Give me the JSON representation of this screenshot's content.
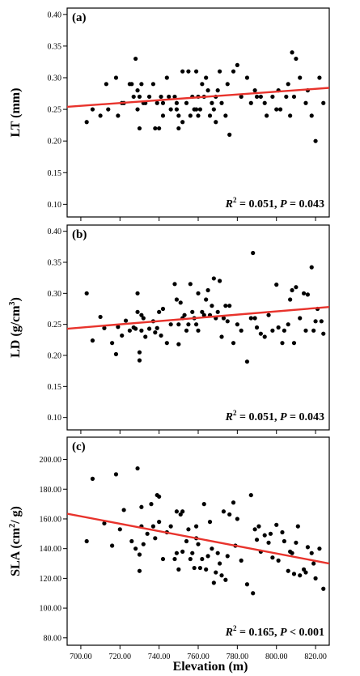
{
  "chart_data": [
    {
      "type": "scatter",
      "panel_label": "(a)",
      "ylabel": "LT (mm)",
      "ylabel_main": "LT (mm)",
      "ylabel_sup": "",
      "ylabel_tail": "",
      "ylim": [
        0.08,
        0.41
      ],
      "yticks": [
        0.1,
        0.15,
        0.2,
        0.25,
        0.3,
        0.35,
        0.4
      ],
      "ytick_labels": [
        "0.10",
        "0.15",
        "0.20",
        "0.25",
        "0.30",
        "0.35",
        "0.40"
      ],
      "stats": {
        "r2": "0.051",
        "p_rel": "=",
        "p": "0.043"
      },
      "trend": {
        "x": [
          693,
          827
        ],
        "y": [
          0.254,
          0.284
        ],
        "color": "#e8332c"
      },
      "x": [
        703,
        706,
        710,
        713,
        714,
        718,
        719,
        721,
        722,
        725,
        726,
        727,
        728,
        729,
        729,
        730,
        730,
        731,
        732,
        733,
        735,
        737,
        738,
        739,
        740,
        741,
        742,
        742,
        744,
        745,
        746,
        748,
        749,
        749,
        750,
        750,
        752,
        752,
        754,
        755,
        756,
        757,
        758,
        759,
        759,
        760,
        760,
        761,
        762,
        763,
        764,
        765,
        766,
        767,
        768,
        769,
        769,
        770,
        771,
        772,
        774,
        775,
        776,
        778,
        780,
        782,
        785,
        787,
        789,
        790,
        792,
        794,
        795,
        798,
        800,
        801,
        802,
        805,
        806,
        807,
        808,
        809,
        810,
        812,
        815,
        816,
        818,
        820,
        822,
        824
      ],
      "y": [
        0.23,
        0.25,
        0.24,
        0.29,
        0.25,
        0.3,
        0.24,
        0.26,
        0.26,
        0.29,
        0.29,
        0.27,
        0.33,
        0.25,
        0.28,
        0.22,
        0.27,
        0.29,
        0.26,
        0.26,
        0.27,
        0.29,
        0.22,
        0.26,
        0.22,
        0.27,
        0.26,
        0.24,
        0.3,
        0.27,
        0.25,
        0.27,
        0.25,
        0.26,
        0.24,
        0.22,
        0.31,
        0.23,
        0.26,
        0.31,
        0.24,
        0.27,
        0.25,
        0.31,
        0.25,
        0.27,
        0.24,
        0.25,
        0.29,
        0.27,
        0.3,
        0.28,
        0.24,
        0.26,
        0.25,
        0.23,
        0.27,
        0.28,
        0.31,
        0.26,
        0.24,
        0.29,
        0.21,
        0.31,
        0.32,
        0.27,
        0.3,
        0.26,
        0.28,
        0.27,
        0.27,
        0.26,
        0.24,
        0.27,
        0.25,
        0.28,
        0.25,
        0.27,
        0.29,
        0.24,
        0.34,
        0.27,
        0.33,
        0.3,
        0.26,
        0.28,
        0.24,
        0.2,
        0.3,
        0.26
      ]
    },
    {
      "type": "scatter",
      "panel_label": "(b)",
      "ylabel": "LD (g/cm3)",
      "ylabel_main": "LD (g/cm",
      "ylabel_sup": "3",
      "ylabel_tail": ")",
      "ylim": [
        0.08,
        0.41
      ],
      "yticks": [
        0.1,
        0.15,
        0.2,
        0.25,
        0.3,
        0.35,
        0.4
      ],
      "ytick_labels": [
        "0.10",
        "0.15",
        "0.20",
        "0.25",
        "0.30",
        "0.35",
        "0.40"
      ],
      "stats": {
        "r2": "0.051",
        "p_rel": "=",
        "p": "0.043"
      },
      "trend": {
        "x": [
          693,
          827
        ],
        "y": [
          0.243,
          0.278
        ],
        "color": "#e8332c"
      },
      "x": [
        703,
        706,
        710,
        712,
        716,
        718,
        719,
        721,
        723,
        725,
        727,
        728,
        729,
        729,
        730,
        730,
        731,
        731,
        732,
        733,
        735,
        737,
        738,
        739,
        740,
        741,
        742,
        744,
        746,
        748,
        749,
        750,
        750,
        751,
        752,
        753,
        754,
        755,
        756,
        757,
        758,
        759,
        760,
        760,
        762,
        763,
        764,
        765,
        766,
        767,
        768,
        769,
        770,
        771,
        772,
        773,
        774,
        775,
        776,
        778,
        780,
        782,
        785,
        787,
        788,
        789,
        790,
        792,
        794,
        796,
        798,
        800,
        801,
        803,
        804,
        806,
        807,
        808,
        809,
        810,
        812,
        814,
        815,
        816,
        818,
        819,
        820,
        821,
        823,
        824
      ],
      "y": [
        0.3,
        0.224,
        0.262,
        0.244,
        0.22,
        0.202,
        0.246,
        0.232,
        0.256,
        0.24,
        0.245,
        0.243,
        0.3,
        0.27,
        0.192,
        0.205,
        0.265,
        0.24,
        0.26,
        0.23,
        0.243,
        0.255,
        0.237,
        0.244,
        0.27,
        0.232,
        0.275,
        0.22,
        0.25,
        0.315,
        0.29,
        0.25,
        0.218,
        0.285,
        0.26,
        0.265,
        0.24,
        0.25,
        0.315,
        0.27,
        0.26,
        0.25,
        0.24,
        0.3,
        0.27,
        0.265,
        0.29,
        0.305,
        0.265,
        0.28,
        0.324,
        0.26,
        0.27,
        0.32,
        0.23,
        0.26,
        0.28,
        0.255,
        0.28,
        0.22,
        0.25,
        0.24,
        0.19,
        0.26,
        0.365,
        0.26,
        0.245,
        0.235,
        0.23,
        0.265,
        0.24,
        0.314,
        0.245,
        0.22,
        0.24,
        0.25,
        0.29,
        0.305,
        0.22,
        0.31,
        0.26,
        0.3,
        0.24,
        0.298,
        0.342,
        0.24,
        0.255,
        0.275,
        0.255,
        0.235
      ]
    },
    {
      "type": "scatter",
      "panel_label": "(c)",
      "ylabel": "SLA (cm2/ g)",
      "ylabel_main": "SLA (cm",
      "ylabel_sup": "2",
      "ylabel_tail": "/ g)",
      "ylim": [
        75,
        215
      ],
      "yticks": [
        80,
        100,
        120,
        140,
        160,
        180,
        200
      ],
      "ytick_labels": [
        "80.00",
        "100.00",
        "120.00",
        "140.00",
        "160.00",
        "180.00",
        "200.00"
      ],
      "stats": {
        "r2": "0.165",
        "p_rel": "<",
        "p": "0.001"
      },
      "trend": {
        "x": [
          693,
          827
        ],
        "y": [
          163.5,
          130
        ],
        "color": "#e8332c"
      },
      "x": [
        703,
        706,
        712,
        716,
        718,
        720,
        722,
        726,
        728,
        729,
        730,
        730,
        731,
        731,
        732,
        734,
        736,
        737,
        738,
        739,
        740,
        740,
        742,
        744,
        746,
        748,
        749,
        749,
        750,
        751,
        752,
        752,
        754,
        755,
        756,
        757,
        758,
        759,
        759,
        760,
        761,
        762,
        763,
        764,
        765,
        766,
        767,
        768,
        769,
        770,
        771,
        772,
        773,
        774,
        775,
        776,
        778,
        779,
        780,
        782,
        785,
        787,
        788,
        789,
        790,
        791,
        792,
        794,
        796,
        797,
        798,
        800,
        801,
        803,
        804,
        806,
        807,
        808,
        809,
        810,
        811,
        812,
        814,
        815,
        816,
        818,
        819,
        820,
        822,
        824
      ],
      "y": [
        145,
        187,
        157,
        142,
        190,
        153,
        166,
        145,
        140,
        194,
        136,
        125,
        155,
        168,
        143,
        150,
        170,
        155,
        147,
        176,
        175,
        158,
        133,
        151,
        155,
        133,
        165,
        137,
        126,
        163,
        165,
        138,
        145,
        153,
        133,
        137,
        127,
        147,
        155,
        143,
        127,
        133,
        170,
        126,
        135,
        158,
        140,
        117,
        124,
        137,
        130,
        122,
        165,
        119,
        135,
        163,
        171,
        142,
        160,
        132,
        116,
        176,
        110,
        153,
        146,
        155,
        138,
        149,
        144,
        150,
        134,
        156,
        132,
        151,
        145,
        125,
        138,
        137,
        123,
        144,
        155,
        122,
        126,
        124,
        141,
        137,
        130,
        120,
        140,
        113
      ]
    }
  ],
  "shared_x": {
    "xlabel": "Elevation (m)",
    "xlim": [
      693,
      827
    ],
    "xticks": [
      700,
      720,
      740,
      760,
      780,
      800,
      820
    ],
    "xtick_labels": [
      "700.00",
      "720.00",
      "740.00",
      "760.00",
      "780.00",
      "800.00",
      "820.00"
    ]
  }
}
